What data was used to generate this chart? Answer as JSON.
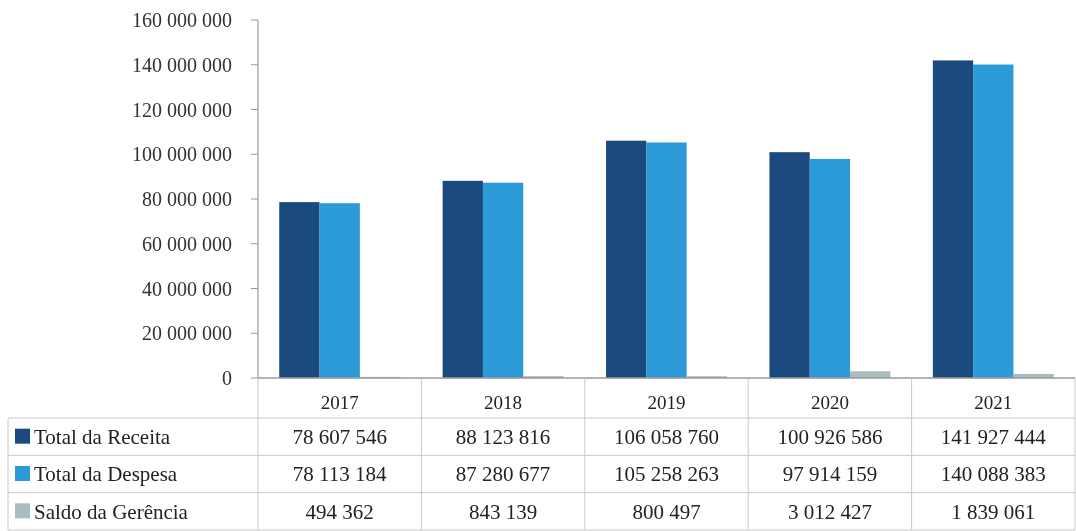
{
  "chart_data": {
    "type": "bar",
    "categories": [
      "2017",
      "2018",
      "2019",
      "2020",
      "2021"
    ],
    "series": [
      {
        "name": "Total da Receita",
        "color": "#1b4a7e",
        "values": [
          78607546,
          88123816,
          106058760,
          100926586,
          141927444
        ],
        "value_labels": [
          "78 607 546",
          "88 123 816",
          "106 058 760",
          "100 926 586",
          "141 927 444"
        ]
      },
      {
        "name": "Total da Despesa",
        "color": "#2b9ad6",
        "values": [
          78113184,
          87280677,
          105258263,
          97914159,
          140088383
        ],
        "value_labels": [
          "78 113 184",
          "87 280 677",
          "105 258 263",
          "97 914 159",
          "140 088 383"
        ]
      },
      {
        "name": "Saldo da Gerência",
        "color": "#a9bcc0",
        "values": [
          494362,
          843139,
          800497,
          3012427,
          1839061
        ],
        "value_labels": [
          "494 362",
          "843 139",
          "800 497",
          "3 012 427",
          "1 839 061"
        ]
      }
    ],
    "ylim": [
      0,
      160000000
    ],
    "yticks": [
      0,
      {
        "value": 20000000,
        "label": "20 000 000"
      },
      {
        "value": 40000000,
        "label": "40 000 000"
      },
      {
        "value": 60000000,
        "label": "60 000 000"
      },
      {
        "value": 80000000,
        "label": "80 000 000"
      },
      {
        "value": 100000000,
        "label": "100 000 000"
      },
      {
        "value": 120000000,
        "label": "120 000 000"
      },
      {
        "value": 140000000,
        "label": "140 000 000"
      },
      {
        "value": 160000000,
        "label": "160 000 000"
      }
    ],
    "legend": "bottom"
  }
}
